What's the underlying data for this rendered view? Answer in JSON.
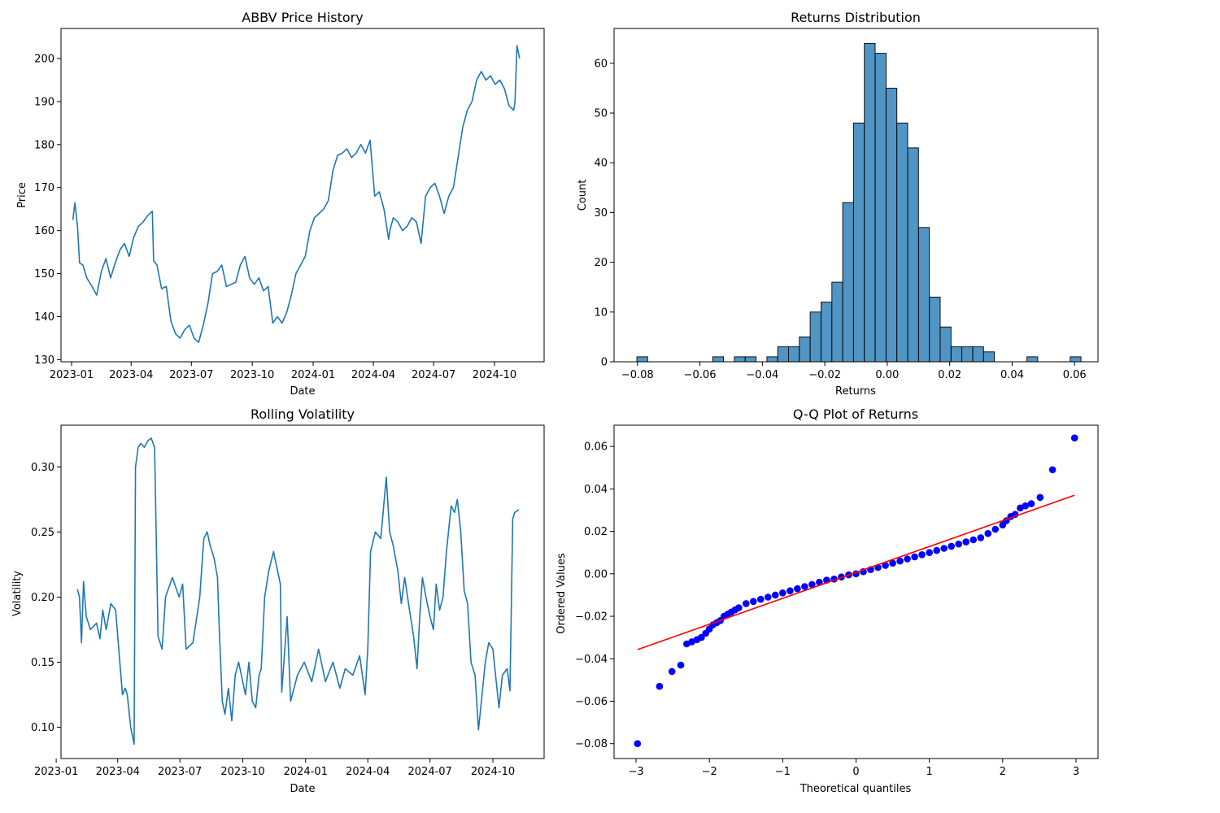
{
  "chart_data": [
    {
      "id": "price",
      "type": "line",
      "title": "ABBV Price History",
      "xlabel": "Date",
      "ylabel": "Price",
      "color": "#1f77b4",
      "xlim": [
        "2022-12-16",
        "2024-12-15"
      ],
      "ylim": [
        129.5,
        207
      ],
      "xticks": [
        "2023-01",
        "2023-04",
        "2023-07",
        "2023-10",
        "2024-01",
        "2024-04",
        "2024-07",
        "2024-10"
      ],
      "yticks": [
        130,
        140,
        150,
        160,
        170,
        180,
        190,
        200
      ],
      "ytick_labels": [
        "130",
        "140",
        "150",
        "160",
        "170",
        "180",
        "190",
        "200"
      ],
      "grid": false,
      "series": [
        {
          "dates": [
            "2023-01-03",
            "2023-01-06",
            "2023-01-10",
            "2023-01-13",
            "2023-01-18",
            "2023-01-24",
            "2023-02-01",
            "2023-02-08",
            "2023-02-15",
            "2023-02-22",
            "2023-03-01",
            "2023-03-08",
            "2023-03-15",
            "2023-03-22",
            "2023-03-29",
            "2023-04-05",
            "2023-04-12",
            "2023-04-19",
            "2023-04-26",
            "2023-05-03",
            "2023-05-05",
            "2023-05-10",
            "2023-05-17",
            "2023-05-24",
            "2023-05-31",
            "2023-06-07",
            "2023-06-14",
            "2023-06-21",
            "2023-06-28",
            "2023-07-05",
            "2023-07-12",
            "2023-07-19",
            "2023-07-26",
            "2023-08-02",
            "2023-08-09",
            "2023-08-16",
            "2023-08-23",
            "2023-08-30",
            "2023-09-06",
            "2023-09-13",
            "2023-09-20",
            "2023-09-27",
            "2023-10-04",
            "2023-10-11",
            "2023-10-18",
            "2023-10-25",
            "2023-11-01",
            "2023-11-08",
            "2023-11-15",
            "2023-11-22",
            "2023-11-29",
            "2023-12-06",
            "2023-12-13",
            "2023-12-20",
            "2023-12-27",
            "2024-01-03",
            "2024-01-10",
            "2024-01-17",
            "2024-01-24",
            "2024-01-31",
            "2024-02-07",
            "2024-02-14",
            "2024-02-21",
            "2024-02-28",
            "2024-03-06",
            "2024-03-13",
            "2024-03-20",
            "2024-03-27",
            "2024-04-03",
            "2024-04-10",
            "2024-04-17",
            "2024-04-24",
            "2024-04-26",
            "2024-05-01",
            "2024-05-08",
            "2024-05-15",
            "2024-05-22",
            "2024-05-29",
            "2024-06-05",
            "2024-06-12",
            "2024-06-19",
            "2024-06-26",
            "2024-07-03",
            "2024-07-10",
            "2024-07-17",
            "2024-07-24",
            "2024-07-31",
            "2024-08-07",
            "2024-08-14",
            "2024-08-21",
            "2024-08-28",
            "2024-09-04",
            "2024-09-11",
            "2024-09-18",
            "2024-09-25",
            "2024-10-02",
            "2024-10-09",
            "2024-10-16",
            "2024-10-23",
            "2024-10-30",
            "2024-11-01",
            "2024-11-04",
            "2024-11-08"
          ],
          "values": [
            162.5,
            166.5,
            161,
            152.5,
            152,
            149,
            147,
            145,
            150.5,
            153.5,
            149,
            152.5,
            155.5,
            157,
            154,
            158.5,
            161,
            162,
            163.5,
            164.5,
            153,
            152,
            146.5,
            147,
            139,
            136,
            135,
            137,
            138,
            135,
            134,
            138,
            143,
            150,
            150.5,
            152,
            147,
            147.5,
            148,
            152,
            154,
            149,
            147.5,
            149,
            146,
            147,
            138.5,
            140,
            138.5,
            141,
            145,
            150,
            152,
            154,
            160,
            163,
            164,
            165,
            167,
            174,
            177.5,
            178,
            179,
            177,
            178,
            180,
            178,
            181,
            168,
            169,
            165,
            158,
            160,
            163,
            162,
            160,
            161,
            163,
            162,
            157,
            168,
            170,
            171,
            168,
            164,
            168,
            170,
            177,
            184,
            188,
            190,
            195,
            197,
            195,
            196,
            194,
            195,
            193,
            189,
            188,
            190,
            203,
            200
          ]
        }
      ]
    },
    {
      "id": "hist",
      "type": "bar",
      "title": "Returns Distribution",
      "xlabel": "Returns",
      "ylabel": "Count",
      "color": "#1f77b4",
      "xlim": [
        -0.0875,
        0.0675
      ],
      "ylim": [
        0,
        67
      ],
      "xticks": [
        -0.08,
        -0.06,
        -0.04,
        -0.02,
        0.0,
        0.02,
        0.04,
        0.06
      ],
      "xtick_labels": [
        "−0.08",
        "−0.06",
        "−0.04",
        "−0.02",
        "0.00",
        "0.02",
        "0.04",
        "0.06"
      ],
      "yticks": [
        0,
        10,
        20,
        30,
        40,
        50,
        60
      ],
      "ytick_labels": [
        "0",
        "10",
        "20",
        "30",
        "40",
        "50",
        "60"
      ],
      "grid": false,
      "bin_start": -0.0802,
      "bin_width": 0.00347,
      "counts": [
        1,
        0,
        0,
        0,
        0,
        0,
        0,
        1,
        0,
        1,
        1,
        0,
        1,
        3,
        3,
        5,
        10,
        12,
        16,
        32,
        48,
        64,
        62,
        55,
        48,
        43,
        27,
        13,
        7,
        3,
        3,
        3,
        2,
        0,
        0,
        0,
        1,
        0,
        0,
        0,
        1
      ]
    },
    {
      "id": "vol",
      "type": "line",
      "title": "Rolling Volatility",
      "xlabel": "Date",
      "ylabel": "Volatility",
      "color": "#1f77b4",
      "xlim": [
        "2023-01-08",
        "2024-12-15"
      ],
      "ylim": [
        0.076,
        0.332
      ],
      "xticks": [
        "2023-01",
        "2023-04",
        "2023-07",
        "2023-10",
        "2024-01",
        "2024-04",
        "2024-07",
        "2024-10"
      ],
      "yticks": [
        0.1,
        0.15,
        0.2,
        0.25,
        0.3
      ],
      "ytick_labels": [
        "0.10",
        "0.15",
        "0.20",
        "0.25",
        "0.30"
      ],
      "grid": false,
      "series": [
        {
          "dates": [
            "2023-02-01",
            "2023-02-04",
            "2023-02-07",
            "2023-02-10",
            "2023-02-14",
            "2023-02-20",
            "2023-03-01",
            "2023-03-06",
            "2023-03-10",
            "2023-03-15",
            "2023-03-22",
            "2023-03-29",
            "2023-04-04",
            "2023-04-08",
            "2023-04-12",
            "2023-04-15",
            "2023-04-20",
            "2023-04-25",
            "2023-04-27",
            "2023-05-01",
            "2023-05-05",
            "2023-05-10",
            "2023-05-15",
            "2023-05-20",
            "2023-05-25",
            "2023-05-30",
            "2023-06-05",
            "2023-06-10",
            "2023-06-20",
            "2023-06-30",
            "2023-07-05",
            "2023-07-10",
            "2023-07-20",
            "2023-07-30",
            "2023-08-05",
            "2023-08-10",
            "2023-08-14",
            "2023-08-20",
            "2023-08-25",
            "2023-08-28",
            "2023-09-01",
            "2023-09-05",
            "2023-09-10",
            "2023-09-15",
            "2023-09-20",
            "2023-09-25",
            "2023-10-05",
            "2023-10-10",
            "2023-10-15",
            "2023-10-20",
            "2023-10-25",
            "2023-10-28",
            "2023-11-02",
            "2023-11-08",
            "2023-11-15",
            "2023-11-25",
            "2023-11-27",
            "2023-12-05",
            "2023-12-10",
            "2023-12-20",
            "2023-12-30",
            "2024-01-10",
            "2024-01-20",
            "2024-01-30",
            "2024-02-10",
            "2024-02-20",
            "2024-02-28",
            "2024-03-10",
            "2024-03-20",
            "2024-03-28",
            "2024-04-01",
            "2024-04-05",
            "2024-04-12",
            "2024-04-20",
            "2024-04-26",
            "2024-04-28",
            "2024-05-03",
            "2024-05-08",
            "2024-05-15",
            "2024-05-20",
            "2024-05-25",
            "2024-06-01",
            "2024-06-07",
            "2024-06-12",
            "2024-06-16",
            "2024-06-20",
            "2024-06-25",
            "2024-07-01",
            "2024-07-06",
            "2024-07-10",
            "2024-07-15",
            "2024-07-20",
            "2024-07-25",
            "2024-08-01",
            "2024-08-06",
            "2024-08-10",
            "2024-08-15",
            "2024-08-20",
            "2024-08-25",
            "2024-08-30",
            "2024-09-05",
            "2024-09-10",
            "2024-09-20",
            "2024-09-25",
            "2024-10-01",
            "2024-10-05",
            "2024-10-10",
            "2024-10-15",
            "2024-10-22",
            "2024-10-26",
            "2024-10-30",
            "2024-11-02",
            "2024-11-08"
          ],
          "values": [
            0.206,
            0.2,
            0.165,
            0.212,
            0.185,
            0.175,
            0.18,
            0.168,
            0.19,
            0.175,
            0.195,
            0.19,
            0.15,
            0.125,
            0.13,
            0.125,
            0.1,
            0.087,
            0.3,
            0.315,
            0.318,
            0.315,
            0.32,
            0.322,
            0.315,
            0.17,
            0.16,
            0.2,
            0.215,
            0.2,
            0.21,
            0.16,
            0.165,
            0.2,
            0.245,
            0.25,
            0.24,
            0.23,
            0.215,
            0.17,
            0.12,
            0.11,
            0.13,
            0.105,
            0.14,
            0.15,
            0.125,
            0.15,
            0.12,
            0.115,
            0.14,
            0.145,
            0.2,
            0.22,
            0.235,
            0.21,
            0.127,
            0.185,
            0.12,
            0.14,
            0.15,
            0.135,
            0.16,
            0.135,
            0.15,
            0.13,
            0.145,
            0.14,
            0.155,
            0.125,
            0.16,
            0.235,
            0.25,
            0.245,
            0.28,
            0.292,
            0.25,
            0.24,
            0.22,
            0.195,
            0.215,
            0.19,
            0.17,
            0.145,
            0.185,
            0.215,
            0.2,
            0.185,
            0.175,
            0.21,
            0.19,
            0.2,
            0.235,
            0.27,
            0.265,
            0.275,
            0.25,
            0.205,
            0.195,
            0.15,
            0.14,
            0.098,
            0.15,
            0.165,
            0.16,
            0.14,
            0.115,
            0.14,
            0.145,
            0.128,
            0.26,
            0.265,
            0.267
          ]
        }
      ]
    },
    {
      "id": "qq",
      "type": "scatter",
      "title": "Q-Q Plot of Returns",
      "xlabel": "Theoretical quantiles",
      "ylabel": "Ordered Values",
      "marker_color": "#0000ff",
      "line_color": "#ff0000",
      "xlim": [
        -3.3,
        3.3
      ],
      "ylim": [
        -0.087,
        0.07
      ],
      "xticks": [
        -3,
        -2,
        -1,
        0,
        1,
        2,
        3
      ],
      "xtick_labels": [
        "−3",
        "−2",
        "−1",
        "0",
        "1",
        "2",
        "3"
      ],
      "yticks": [
        -0.08,
        -0.06,
        -0.04,
        -0.02,
        0.0,
        0.02,
        0.04,
        0.06
      ],
      "ytick_labels": [
        "−0.08",
        "−0.06",
        "−0.04",
        "−0.02",
        "0.00",
        "0.02",
        "0.04",
        "0.06"
      ],
      "grid": false,
      "fit_line": {
        "x": [
          -2.98,
          2.98
        ],
        "y": [
          -0.0357,
          0.037
        ]
      },
      "points": {
        "x": [
          -2.98,
          -2.68,
          -2.51,
          -2.39,
          -2.31,
          -2.24,
          -2.17,
          -2.11,
          -2.05,
          -2.0,
          -1.95,
          -1.9,
          -1.85,
          -1.8,
          -1.75,
          -1.7,
          -1.65,
          -1.6,
          -1.5,
          -1.4,
          -1.3,
          -1.2,
          -1.1,
          -1.0,
          -0.9,
          -0.8,
          -0.7,
          -0.6,
          -0.5,
          -0.4,
          -0.3,
          -0.2,
          -0.1,
          0.0,
          0.1,
          0.2,
          0.3,
          0.4,
          0.5,
          0.6,
          0.7,
          0.8,
          0.9,
          1.0,
          1.1,
          1.2,
          1.3,
          1.4,
          1.5,
          1.6,
          1.7,
          1.8,
          1.9,
          2.0,
          2.05,
          2.11,
          2.17,
          2.24,
          2.31,
          2.39,
          2.51,
          2.68,
          2.98
        ],
        "y": [
          -0.08,
          -0.053,
          -0.046,
          -0.043,
          -0.033,
          -0.032,
          -0.031,
          -0.03,
          -0.028,
          -0.026,
          -0.024,
          -0.023,
          -0.022,
          -0.02,
          -0.019,
          -0.018,
          -0.017,
          -0.016,
          -0.014,
          -0.013,
          -0.012,
          -0.011,
          -0.01,
          -0.009,
          -0.008,
          -0.007,
          -0.006,
          -0.005,
          -0.004,
          -0.003,
          -0.0025,
          -0.0015,
          -0.0005,
          0.0,
          0.001,
          0.002,
          0.003,
          0.004,
          0.005,
          0.006,
          0.007,
          0.008,
          0.009,
          0.01,
          0.011,
          0.012,
          0.013,
          0.014,
          0.015,
          0.016,
          0.017,
          0.019,
          0.021,
          0.023,
          0.025,
          0.027,
          0.028,
          0.031,
          0.032,
          0.033,
          0.036,
          0.049,
          0.064
        ]
      }
    }
  ]
}
